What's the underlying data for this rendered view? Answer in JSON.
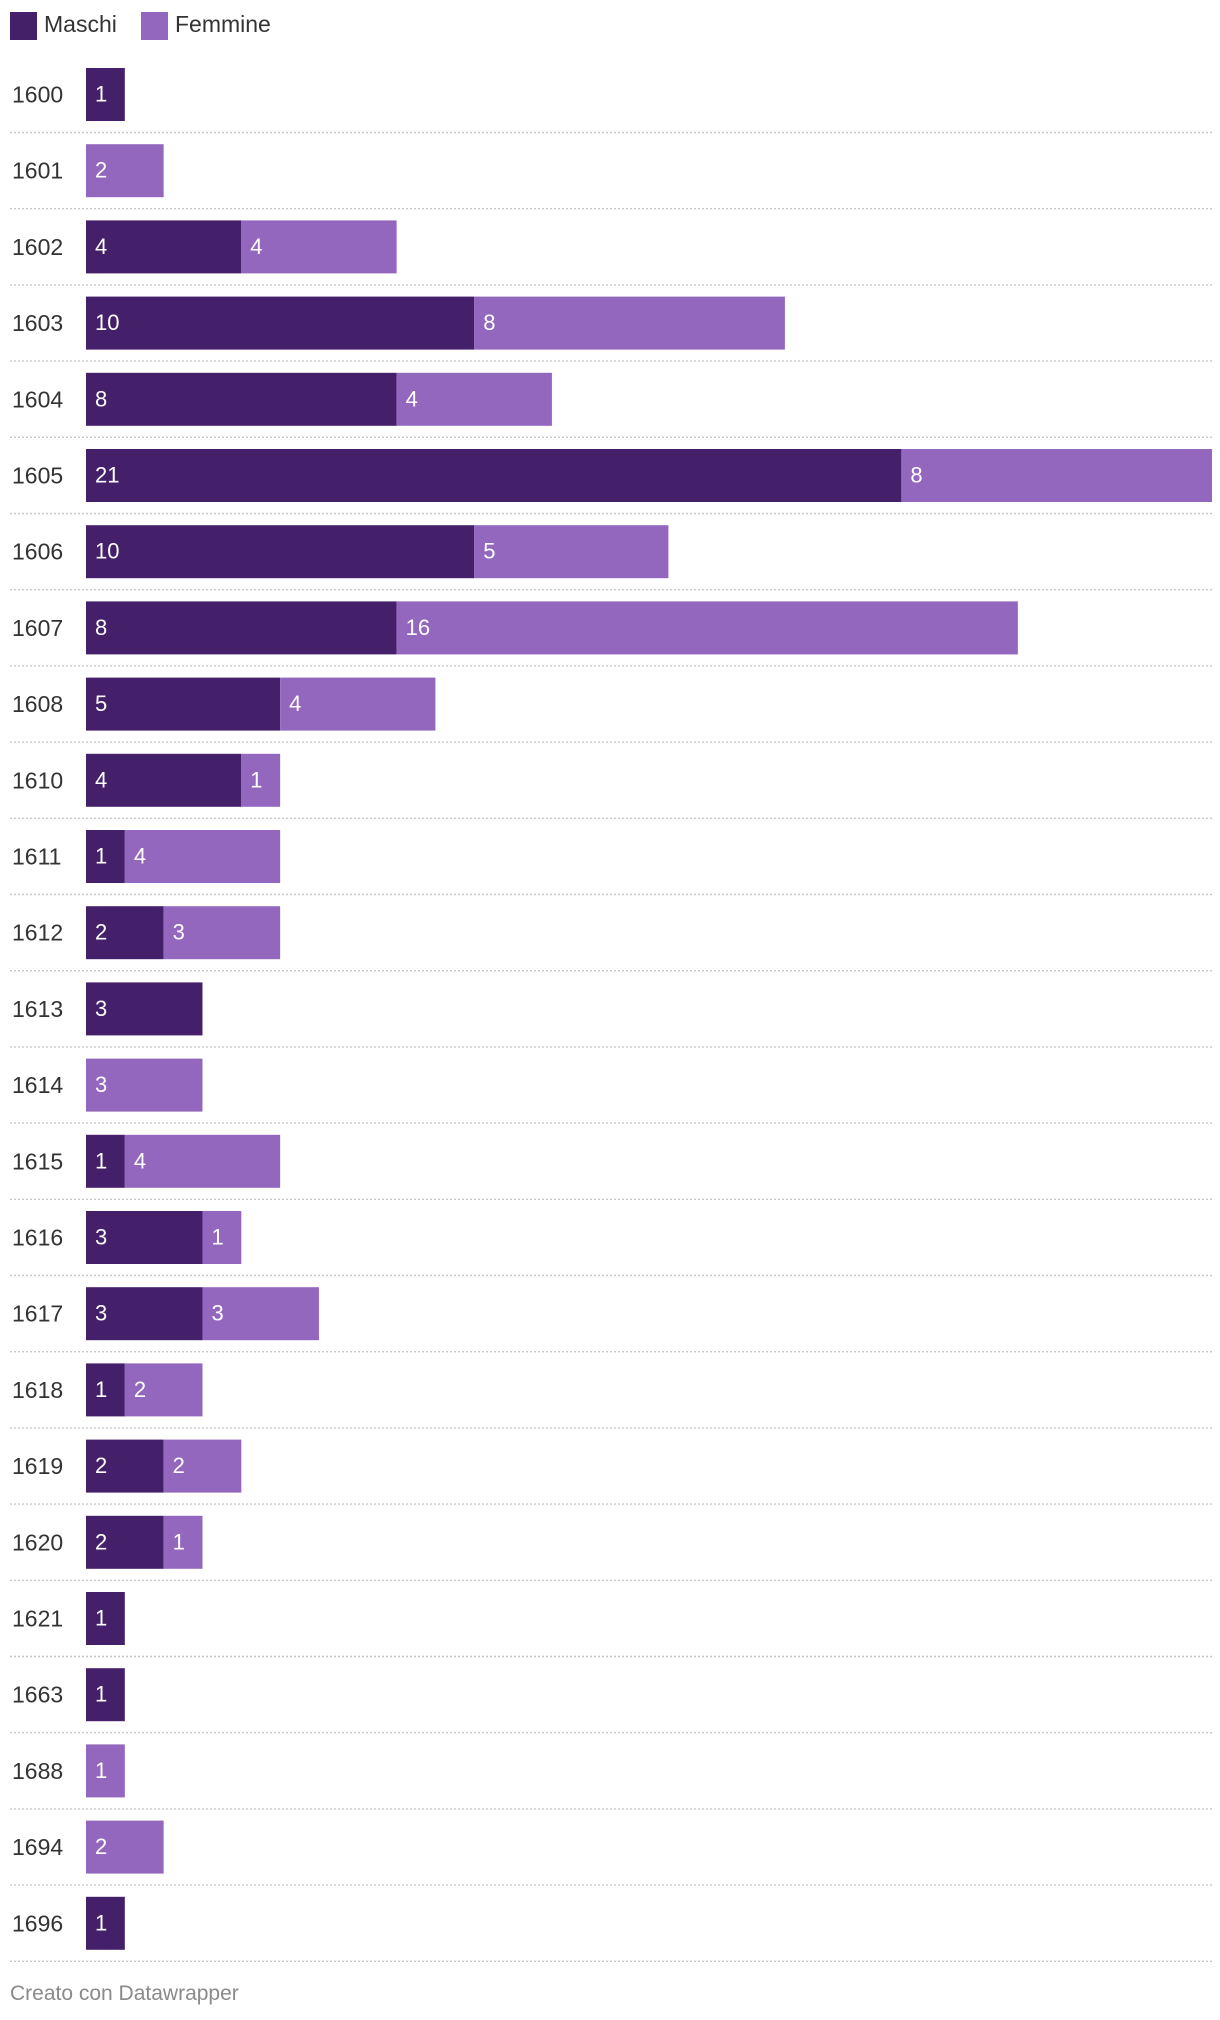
{
  "chart_data": {
    "type": "bar",
    "orientation": "horizontal",
    "stacked": true,
    "legend_position": "top-left",
    "grid": false,
    "categories": [
      "1600",
      "1601",
      "1602",
      "1603",
      "1604",
      "1605",
      "1606",
      "1607",
      "1608",
      "1610",
      "1611",
      "1612",
      "1613",
      "1614",
      "1615",
      "1616",
      "1617",
      "1618",
      "1619",
      "1620",
      "1621",
      "1663",
      "1688",
      "1694",
      "1696"
    ],
    "series": [
      {
        "name": "Maschi",
        "color": "#45206a",
        "values": [
          1,
          0,
          4,
          10,
          8,
          21,
          10,
          8,
          5,
          4,
          1,
          2,
          3,
          0,
          1,
          3,
          3,
          1,
          2,
          2,
          1,
          1,
          0,
          0,
          1
        ]
      },
      {
        "name": "Femmine",
        "color": "#9467bf",
        "values": [
          0,
          2,
          4,
          8,
          4,
          8,
          5,
          16,
          4,
          1,
          4,
          3,
          0,
          3,
          4,
          1,
          3,
          2,
          2,
          1,
          0,
          0,
          1,
          2,
          0
        ]
      }
    ],
    "xlim": [
      0,
      29
    ]
  },
  "footer": {
    "credit": "Creato con Datawrapper"
  }
}
